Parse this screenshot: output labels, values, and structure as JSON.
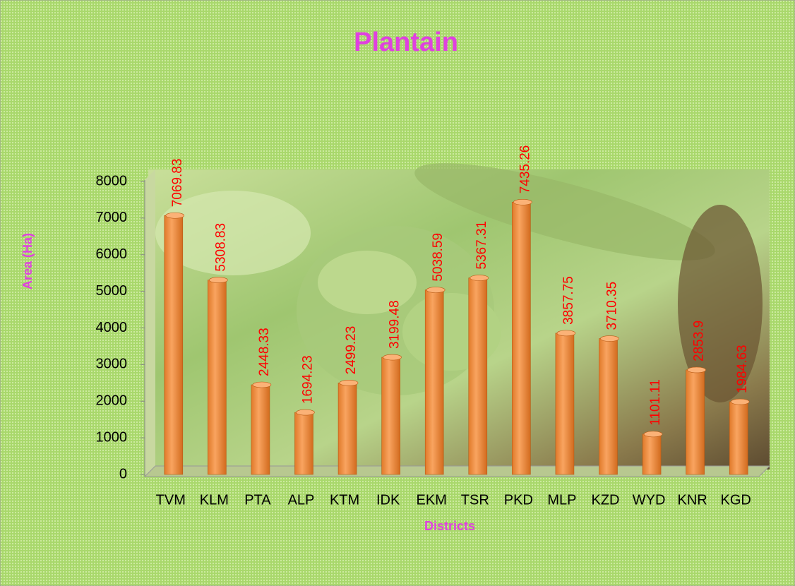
{
  "chart_data": {
    "type": "bar",
    "title": "Plantain",
    "xlabel": "Districts",
    "ylabel": "Area (Ha)",
    "categories": [
      "TVM",
      "KLM",
      "PTA",
      "ALP",
      "KTM",
      "IDK",
      "EKM",
      "TSR",
      "PKD",
      "MLP",
      "KZD",
      "WYD",
      "KNR",
      "KGD"
    ],
    "values": [
      7069.83,
      5308.83,
      2448.33,
      1694.23,
      2499.23,
      3199.48,
      5038.59,
      5367.31,
      7435.26,
      3857.75,
      3710.35,
      1101.11,
      2853.9,
      1984.63
    ],
    "color": "#f79646",
    "ylim": [
      0,
      8000
    ],
    "yticks": [
      0,
      1000,
      2000,
      3000,
      4000,
      5000,
      6000,
      7000,
      8000
    ]
  }
}
